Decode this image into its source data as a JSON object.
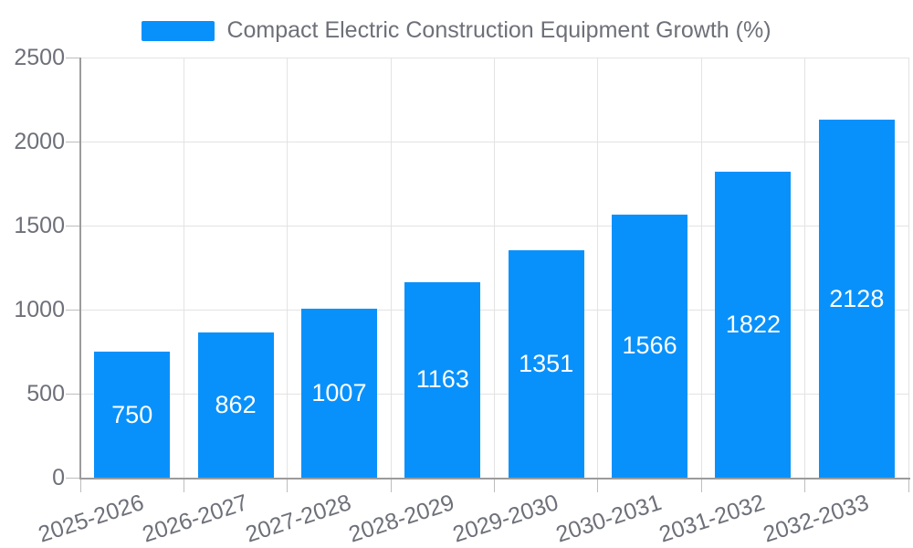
{
  "chart_data": {
    "type": "bar",
    "title": "Compact Electric Construction Equipment Growth (%)",
    "categories": [
      "2025-2026",
      "2026-2027",
      "2027-2028",
      "2028-2029",
      "2029-2030",
      "2030-2031",
      "2031-2032",
      "2032-2033"
    ],
    "values": [
      750,
      862,
      1007,
      1163,
      1351,
      1566,
      1822,
      2128
    ],
    "xlabel": "",
    "ylabel": "",
    "ylim": [
      0,
      2500
    ],
    "yticks": [
      0,
      500,
      1000,
      1500,
      2000,
      2500
    ],
    "grid": true,
    "legend_position": "top-center",
    "value_label_position": "inside-center",
    "x_tick_rotation_deg": -18,
    "colors": {
      "bar": "#0991fb",
      "grid_line": "#e3e3e3",
      "axis_line": "#9b9b9b",
      "tick_mark": "#bdbdbd",
      "tick_label": "#6e7079",
      "legend_text": "#6e7079",
      "value_label": "#ffffff",
      "background": "#ffffff"
    }
  }
}
